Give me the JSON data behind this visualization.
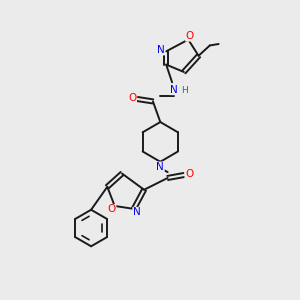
{
  "background_color": "#ebebeb",
  "bond_color": "#1a1a1a",
  "atom_colors": {
    "N": "#0000ee",
    "O": "#ff0000",
    "C": "#1a1a1a",
    "H": "#008080"
  },
  "figsize": [
    3.0,
    3.0
  ],
  "dpi": 100
}
